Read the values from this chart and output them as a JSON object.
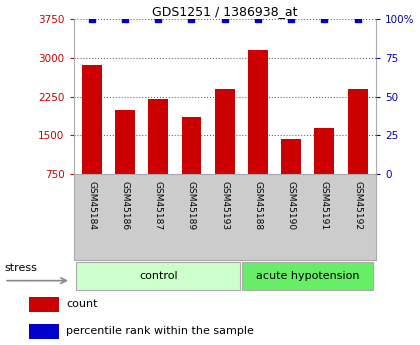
{
  "title": "GDS1251 / 1386938_at",
  "samples": [
    "GSM45184",
    "GSM45186",
    "GSM45187",
    "GSM45189",
    "GSM45193",
    "GSM45188",
    "GSM45190",
    "GSM45191",
    "GSM45192"
  ],
  "counts": [
    2870,
    2000,
    2200,
    1850,
    2400,
    3150,
    1430,
    1650,
    2400
  ],
  "percentiles": [
    100,
    100,
    100,
    100,
    100,
    100,
    100,
    100,
    100
  ],
  "group_labels": [
    "control",
    "acute hypotension"
  ],
  "bar_color": "#cc0000",
  "percentile_color": "#0000cc",
  "ylim_left": [
    750,
    3750
  ],
  "yticks_left": [
    750,
    1500,
    2250,
    3000,
    3750
  ],
  "ylim_right": [
    0,
    100
  ],
  "yticks_right": [
    0,
    25,
    50,
    75,
    100
  ],
  "ylabel_right_labels": [
    "0",
    "25",
    "50",
    "75",
    "100%"
  ],
  "tick_area_color": "#cccccc",
  "left_tick_color": "#cc0000",
  "right_tick_color": "#0000cc",
  "stress_label": "stress",
  "legend_count_label": "count",
  "legend_percentile_label": "percentile rank within the sample",
  "control_count": 5,
  "acute_count": 4,
  "control_color": "#ccffcc",
  "acute_color": "#66ee66"
}
